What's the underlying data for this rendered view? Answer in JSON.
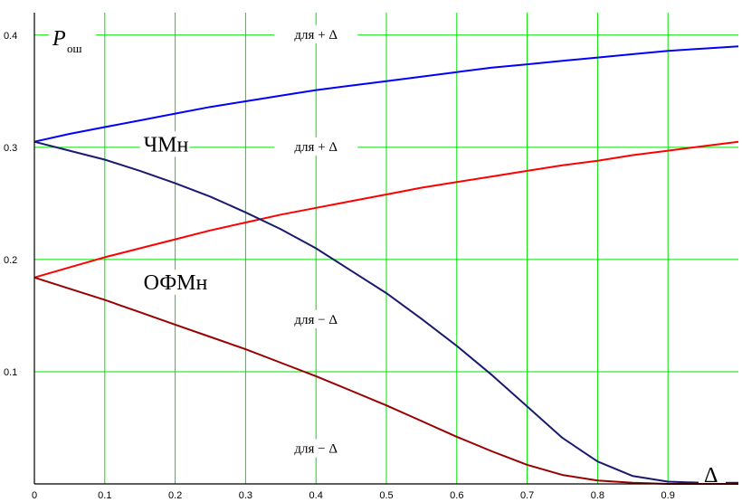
{
  "chart_data": {
    "type": "line",
    "xlim": [
      0,
      1
    ],
    "ylim": [
      0,
      0.42
    ],
    "grid": true,
    "grid_color": "#00e000",
    "x_ticks": [
      "0",
      "0.1",
      "0.2",
      "0.3",
      "0.4",
      "0.5",
      "0.6",
      "0.7",
      "0.8",
      "0.9"
    ],
    "x_tick_values": [
      0,
      0.1,
      0.2,
      0.3,
      0.4,
      0.5,
      0.6,
      0.7,
      0.8,
      0.9
    ],
    "y_ticks": [
      "0.1",
      "0.2",
      "0.3",
      "0.4"
    ],
    "y_tick_values": [
      0.1,
      0.2,
      0.3,
      0.4
    ],
    "ylabel_main": "P",
    "ylabel_sub": "ош",
    "xlabel": "Δ",
    "series": [
      {
        "color": "#0000ff",
        "x": [
          0,
          0.05,
          0.1,
          0.15,
          0.2,
          0.25,
          0.3,
          0.35,
          0.4,
          0.45,
          0.5,
          0.55,
          0.6,
          0.65,
          0.7,
          0.75,
          0.8,
          0.85,
          0.9,
          0.95,
          1.0
        ],
        "y": [
          0.305,
          0.312,
          0.318,
          0.324,
          0.33,
          0.336,
          0.341,
          0.346,
          0.351,
          0.355,
          0.359,
          0.363,
          0.367,
          0.371,
          0.374,
          0.377,
          0.38,
          0.383,
          0.386,
          0.388,
          0.39
        ]
      },
      {
        "color": "#ff0000",
        "x": [
          0,
          0.05,
          0.1,
          0.15,
          0.2,
          0.25,
          0.3,
          0.35,
          0.4,
          0.45,
          0.5,
          0.55,
          0.6,
          0.65,
          0.7,
          0.75,
          0.8,
          0.85,
          0.9,
          0.95,
          1.0
        ],
        "y": [
          0.184,
          0.193,
          0.202,
          0.21,
          0.218,
          0.226,
          0.233,
          0.24,
          0.246,
          0.252,
          0.258,
          0.264,
          0.269,
          0.274,
          0.279,
          0.284,
          0.288,
          0.293,
          0.297,
          0.301,
          0.305
        ]
      },
      {
        "color": "#1a1a6e",
        "x": [
          0,
          0.05,
          0.1,
          0.15,
          0.2,
          0.25,
          0.3,
          0.35,
          0.4,
          0.45,
          0.5,
          0.55,
          0.6,
          0.65,
          0.7,
          0.75,
          0.8,
          0.85,
          0.9,
          0.95,
          1.0
        ],
        "y": [
          0.305,
          0.297,
          0.289,
          0.279,
          0.268,
          0.256,
          0.242,
          0.227,
          0.21,
          0.19,
          0.17,
          0.147,
          0.123,
          0.097,
          0.069,
          0.041,
          0.02,
          0.007,
          0.002,
          0.001,
          0.001
        ]
      },
      {
        "color": "#990000",
        "x": [
          0,
          0.05,
          0.1,
          0.15,
          0.2,
          0.25,
          0.3,
          0.35,
          0.4,
          0.45,
          0.5,
          0.55,
          0.6,
          0.65,
          0.7,
          0.75,
          0.8,
          0.85,
          0.9,
          0.95,
          1.0
        ],
        "y": [
          0.184,
          0.174,
          0.164,
          0.153,
          0.142,
          0.131,
          0.12,
          0.108,
          0.096,
          0.083,
          0.07,
          0.056,
          0.042,
          0.029,
          0.017,
          0.008,
          0.003,
          0.001,
          0.0,
          0.0,
          0.0
        ]
      }
    ],
    "annotations": [
      {
        "text": "для  + Δ",
        "x": 0.4,
        "y": 0.4
      },
      {
        "text": "для  + Δ",
        "x": 0.4,
        "y": 0.3
      },
      {
        "text": "для  − Δ",
        "x": 0.4,
        "y": 0.146
      },
      {
        "text": "для  − Δ",
        "x": 0.4,
        "y": 0.031
      }
    ],
    "curve_labels": [
      {
        "text": "ЧМн",
        "x": 0.155,
        "y": 0.298
      },
      {
        "text": "ОФМн",
        "x": 0.155,
        "y": 0.175
      }
    ]
  }
}
